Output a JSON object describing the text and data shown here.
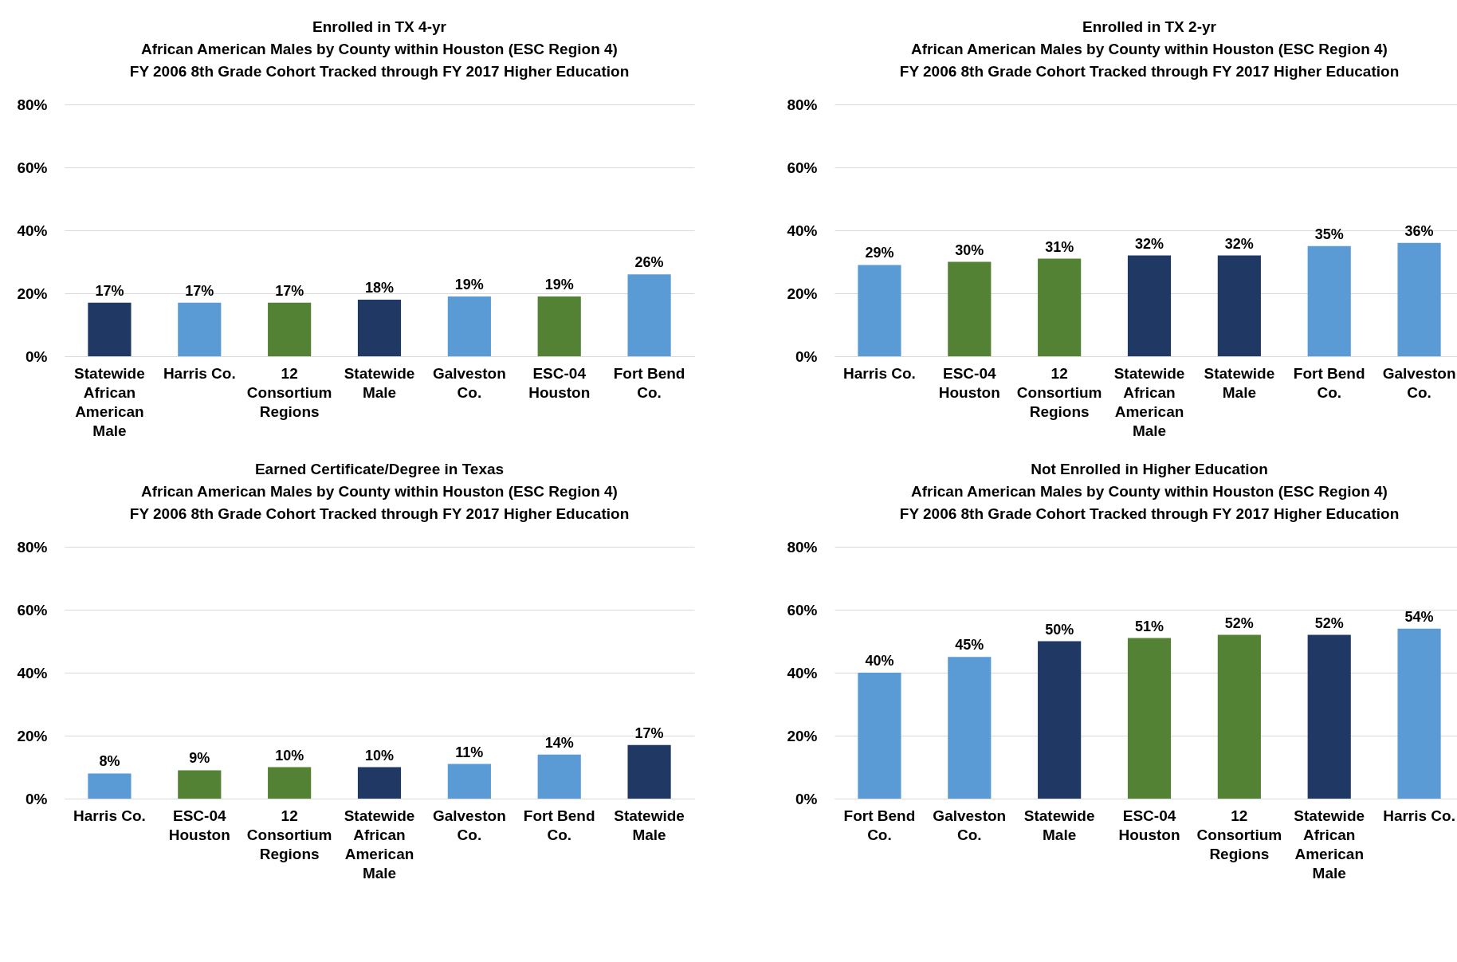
{
  "chart_data": [
    {
      "type": "bar",
      "title": "Enrolled in TX 4-yr",
      "subtitle": "African American Males by County within Houston (ESC Region 4)\nFY 2006 8th Grade Cohort Tracked through FY 2017 Higher Education",
      "categories": [
        "Statewide African American Male",
        "Harris Co.",
        "12 Consortium Regions",
        "Statewide Male",
        "Galveston Co.",
        "ESC-04 Houston",
        "Fort Bend Co."
      ],
      "values": [
        17,
        17,
        17,
        18,
        19,
        19,
        26
      ],
      "value_labels": [
        "17%",
        "17%",
        "17%",
        "18%",
        "19%",
        "19%",
        "26%"
      ],
      "colors": [
        "#1f3864",
        "#5b9bd5",
        "#548235",
        "#1f3864",
        "#5b9bd5",
        "#548235",
        "#5b9bd5"
      ],
      "ylim": [
        0,
        80
      ],
      "yticks": [
        {
          "value": 0,
          "label": "0%"
        },
        {
          "value": 20,
          "label": "20%"
        },
        {
          "value": 40,
          "label": "40%"
        },
        {
          "value": 60,
          "label": "60%"
        },
        {
          "value": 80,
          "label": "80%"
        }
      ],
      "grid": "y"
    },
    {
      "type": "bar",
      "title": "Enrolled in TX 2-yr",
      "subtitle": "African American Males by County within Houston (ESC Region 4)\nFY 2006 8th Grade Cohort Tracked through FY 2017 Higher Education",
      "categories": [
        "Harris Co.",
        "ESC-04 Houston",
        "12 Consortium Regions",
        "Statewide African American Male",
        "Statewide Male",
        "Fort Bend Co.",
        "Galveston Co."
      ],
      "values": [
        29,
        30,
        31,
        32,
        32,
        35,
        36
      ],
      "value_labels": [
        "29%",
        "30%",
        "31%",
        "32%",
        "32%",
        "35%",
        "36%"
      ],
      "colors": [
        "#5b9bd5",
        "#548235",
        "#548235",
        "#1f3864",
        "#1f3864",
        "#5b9bd5",
        "#5b9bd5"
      ],
      "ylim": [
        0,
        80
      ],
      "yticks": [
        {
          "value": 0,
          "label": "0%"
        },
        {
          "value": 20,
          "label": "20%"
        },
        {
          "value": 40,
          "label": "40%"
        },
        {
          "value": 60,
          "label": "60%"
        },
        {
          "value": 80,
          "label": "80%"
        }
      ],
      "grid": "y"
    },
    {
      "type": "bar",
      "title": "Earned Certificate/Degree in Texas",
      "subtitle": "African American Males by County within Houston (ESC Region 4)\nFY 2006 8th Grade Cohort Tracked through FY 2017 Higher Education",
      "categories": [
        "Harris Co.",
        "ESC-04 Houston",
        "12 Consortium Regions",
        "Statewide African American Male",
        "Galveston Co.",
        "Fort Bend Co.",
        "Statewide Male"
      ],
      "values": [
        8,
        9,
        10,
        10,
        11,
        14,
        17
      ],
      "value_labels": [
        "8%",
        "9%",
        "10%",
        "10%",
        "11%",
        "14%",
        "17%"
      ],
      "colors": [
        "#5b9bd5",
        "#548235",
        "#548235",
        "#1f3864",
        "#5b9bd5",
        "#5b9bd5",
        "#1f3864"
      ],
      "ylim": [
        0,
        80
      ],
      "yticks": [
        {
          "value": 0,
          "label": "0%"
        },
        {
          "value": 20,
          "label": "20%"
        },
        {
          "value": 40,
          "label": "40%"
        },
        {
          "value": 60,
          "label": "60%"
        },
        {
          "value": 80,
          "label": "80%"
        }
      ],
      "grid": "y"
    },
    {
      "type": "bar",
      "title": "Not Enrolled in Higher Education",
      "subtitle": "African American Males by County within Houston (ESC Region 4)\nFY 2006 8th Grade Cohort Tracked through FY 2017 Higher Education",
      "categories": [
        "Fort Bend Co.",
        "Galveston Co.",
        "Statewide Male",
        "ESC-04 Houston",
        "12 Consortium Regions",
        "Statewide African American Male",
        "Harris Co."
      ],
      "values": [
        40,
        45,
        50,
        51,
        52,
        52,
        54
      ],
      "value_labels": [
        "40%",
        "45%",
        "50%",
        "51%",
        "52%",
        "52%",
        "54%"
      ],
      "colors": [
        "#5b9bd5",
        "#5b9bd5",
        "#1f3864",
        "#548235",
        "#548235",
        "#1f3864",
        "#5b9bd5"
      ],
      "ylim": [
        0,
        80
      ],
      "yticks": [
        {
          "value": 0,
          "label": "0%"
        },
        {
          "value": 20,
          "label": "20%"
        },
        {
          "value": 40,
          "label": "40%"
        },
        {
          "value": 60,
          "label": "60%"
        },
        {
          "value": 80,
          "label": "80%"
        }
      ],
      "grid": "y"
    }
  ]
}
